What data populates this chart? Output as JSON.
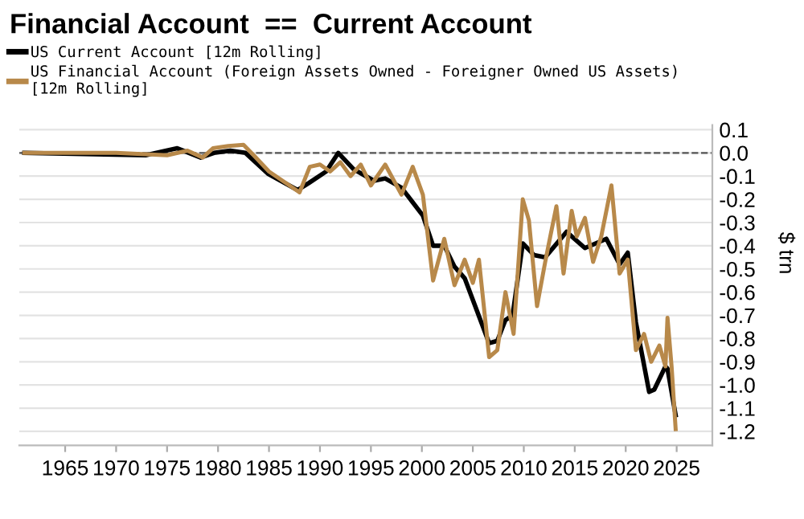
{
  "chart_data": {
    "type": "line",
    "title": "Financial Account  ==  Current Account",
    "ylabel": "$ trn",
    "series": [
      {
        "name": "US Current Account [12m Rolling]",
        "color": "#000000",
        "x": [
          1961,
          1972.9,
          1974.4,
          1976,
          1978.3,
          1979.6,
          1981.2,
          1982.7,
          1984.9,
          1987.8,
          1988.9,
          1990.6,
          1991.8,
          1993.3,
          1995.3,
          1996.4,
          1998,
          2000.1,
          2001.1,
          2002.2,
          2003.2,
          2004.2,
          2006.6,
          2007.4,
          2008.2,
          2008.9,
          2009.9,
          2011,
          2012.1,
          2014.2,
          2016,
          2018.1,
          2019.4,
          2020.2,
          2021,
          2022.3,
          2022.8,
          2023.9,
          2024.1,
          2024.9
        ],
        "values": [
          0,
          -0.01,
          0.005,
          0.02,
          -0.02,
          0,
          0.01,
          0,
          -0.09,
          -0.16,
          -0.13,
          -0.08,
          0.0,
          -0.07,
          -0.12,
          -0.11,
          -0.15,
          -0.27,
          -0.4,
          -0.4,
          -0.49,
          -0.54,
          -0.82,
          -0.81,
          -0.72,
          -0.7,
          -0.39,
          -0.44,
          -0.45,
          -0.34,
          -0.41,
          -0.37,
          -0.48,
          -0.43,
          -0.73,
          -1.03,
          -1.02,
          -0.92,
          -0.93,
          -1.13
        ]
      },
      {
        "name": "US Financial Account (Foreign Assets Owned - Foreigner Owned US Assets)\n[12m Rolling]",
        "color": "#b8894a",
        "x": [
          1961,
          1970,
          1975,
          1977,
          1978.5,
          1979.5,
          1981,
          1982.5,
          1983.5,
          1985,
          1987,
          1988,
          1989,
          1990,
          1991,
          1992,
          1993,
          1994,
          1995,
          1996.4,
          1998,
          1999.1,
          2000.1,
          2001.1,
          2002.2,
          2003.2,
          2004.2,
          2005,
          2005.6,
          2006.6,
          2007.4,
          2008.2,
          2009,
          2009.9,
          2010.5,
          2011.3,
          2012.1,
          2012.6,
          2013.2,
          2013.9,
          2014.7,
          2015.2,
          2016,
          2016.8,
          2017.6,
          2018.6,
          2019.4,
          2020.2,
          2021,
          2021.8,
          2022.5,
          2023.3,
          2023.9,
          2024.1,
          2024.5,
          2024.9
        ],
        "values": [
          0,
          0,
          -0.01,
          0.01,
          -0.02,
          0.02,
          0.03,
          0.035,
          -0.01,
          -0.08,
          -0.14,
          -0.17,
          -0.06,
          -0.05,
          -0.08,
          -0.04,
          -0.1,
          -0.05,
          -0.14,
          -0.05,
          -0.18,
          -0.06,
          -0.18,
          -0.55,
          -0.37,
          -0.57,
          -0.46,
          -0.56,
          -0.46,
          -0.88,
          -0.85,
          -0.6,
          -0.78,
          -0.2,
          -0.29,
          -0.66,
          -0.47,
          -0.36,
          -0.23,
          -0.52,
          -0.25,
          -0.36,
          -0.28,
          -0.47,
          -0.36,
          -0.14,
          -0.52,
          -0.46,
          -0.85,
          -0.78,
          -0.9,
          -0.83,
          -0.92,
          -0.71,
          -0.92,
          -1.19
        ]
      }
    ],
    "xlim": [
      1960.5,
      2028.5
    ],
    "xticks": [
      1965,
      1970,
      1975,
      1980,
      1985,
      1990,
      1995,
      2000,
      2005,
      2010,
      2015,
      2020,
      2025
    ],
    "ylim": [
      -1.26,
      0.12
    ],
    "yticks": [
      {
        "value": 0.1,
        "label": "0.1"
      },
      {
        "value": 0.0,
        "label": "0.0"
      },
      {
        "value": -0.1,
        "label": "-0.1"
      },
      {
        "value": -0.2,
        "label": "-0.2"
      },
      {
        "value": -0.3,
        "label": "-0.3"
      },
      {
        "value": -0.4,
        "label": "-0.4"
      },
      {
        "value": -0.5,
        "label": "-0.5"
      },
      {
        "value": -0.6,
        "label": "-0.6"
      },
      {
        "value": -0.7,
        "label": "-0.7"
      },
      {
        "value": -0.8,
        "label": "-0.8"
      },
      {
        "value": -0.9,
        "label": "-0.9"
      },
      {
        "value": -1.0,
        "label": "-1.0"
      },
      {
        "value": -1.1,
        "label": "-1.1"
      },
      {
        "value": -1.2,
        "label": "-1.2"
      }
    ],
    "ref_lines": [
      {
        "axis": "y",
        "value": 0,
        "color": "#555555",
        "line_style": "dashed"
      }
    ],
    "grid": "y",
    "legend": "top left",
    "marker": "none",
    "line_style": "solid"
  }
}
